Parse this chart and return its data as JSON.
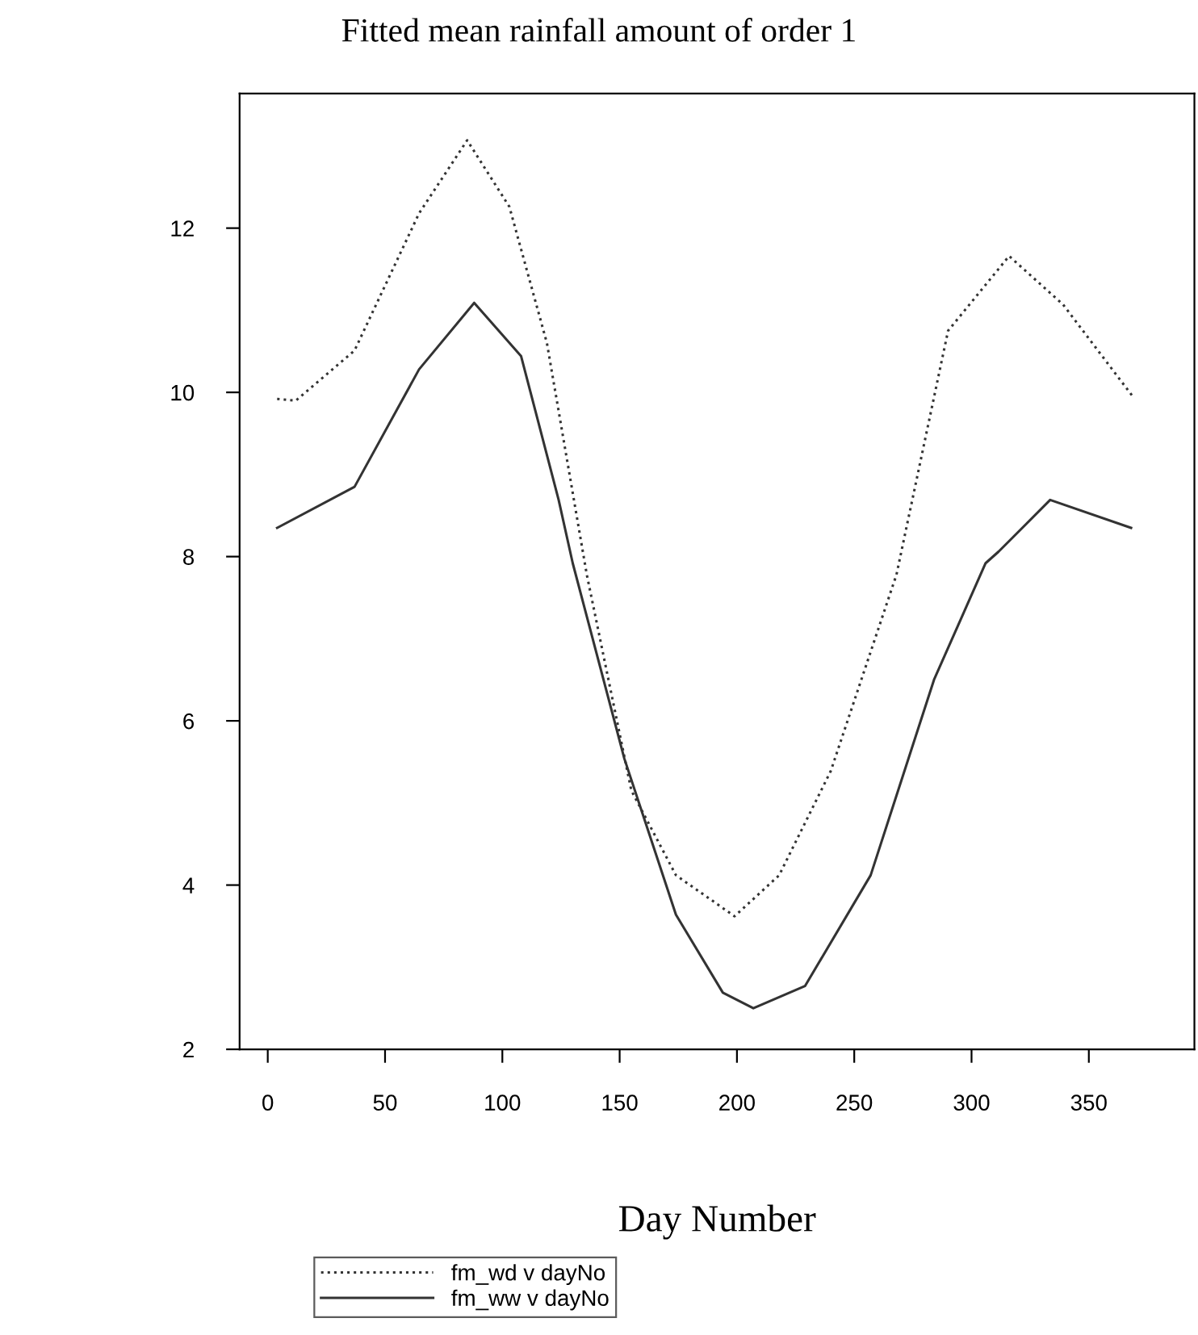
{
  "chart_data": {
    "type": "line",
    "title": "Fitted mean rainfall amount of order 1",
    "xlabel": "Day Number",
    "xlim": [
      -12,
      395
    ],
    "ylim": [
      2,
      13.64
    ],
    "xticks": [
      0,
      50,
      100,
      150,
      200,
      250,
      300,
      350
    ],
    "yticks": [
      2,
      4,
      6,
      8,
      10,
      12
    ],
    "grid": false,
    "legend": "bottom",
    "marker": "none",
    "series": [
      {
        "name": "fm_wd v dayNo",
        "color": "#333333",
        "line_style": "dotted",
        "x": [
          4,
          12,
          37,
          64.5,
          85,
          103,
          119,
          136,
          155,
          174,
          199,
          218,
          240,
          268,
          290,
          316,
          339,
          369
        ],
        "values": [
          9.92,
          9.9,
          10.51,
          12.18,
          13.07,
          12.26,
          10.6,
          7.78,
          5.15,
          4.12,
          3.62,
          4.12,
          5.39,
          7.78,
          10.75,
          11.66,
          11.07,
          9.94
        ]
      },
      {
        "name": "fm_ww v dayNo",
        "color": "#333333",
        "line_style": "solid",
        "x": [
          4,
          37,
          64.5,
          88,
          108,
          124,
          130,
          152,
          174,
          194,
          207,
          229,
          257,
          284,
          306,
          311.5,
          333.5,
          368
        ],
        "values": [
          8.35,
          8.85,
          10.28,
          11.09,
          10.44,
          8.69,
          7.92,
          5.54,
          3.64,
          2.69,
          2.5,
          2.77,
          4.12,
          6.5,
          7.92,
          8.06,
          8.69,
          8.35
        ]
      }
    ]
  }
}
